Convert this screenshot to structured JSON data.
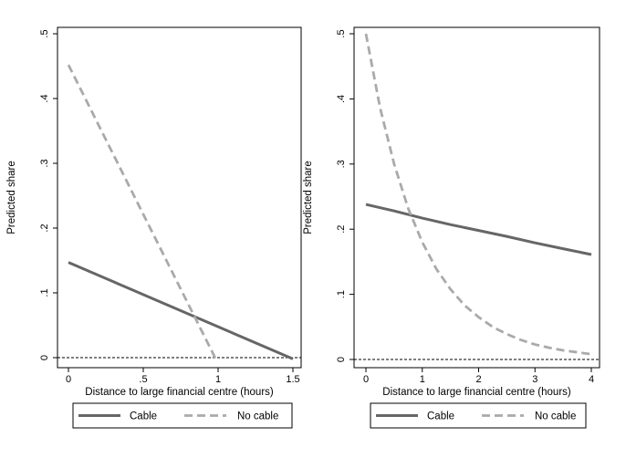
{
  "chart_data": [
    {
      "type": "line",
      "xlabel": "Distance to large financial centre (hours)",
      "ylabel": "Predicted share",
      "xlim": [
        0,
        1.5
      ],
      "ylim": [
        0,
        0.5
      ],
      "xticks": [
        0,
        0.5,
        1,
        1.5
      ],
      "xtick_labels": [
        "0",
        ".5",
        "1",
        "1.5"
      ],
      "yticks": [
        0,
        0.1,
        0.2,
        0.3,
        0.4,
        0.5
      ],
      "ytick_labels": [
        "0",
        ".1",
        ".2",
        ".3",
        ".4",
        ".5"
      ],
      "reference_line": {
        "y": 0,
        "style": "dashed"
      },
      "legend": {
        "position": "bottom",
        "entries": [
          "Cable",
          "No cable"
        ]
      },
      "series": [
        {
          "name": "Cable",
          "style": "solid",
          "color": "#666666",
          "x": [
            0,
            1.5
          ],
          "y": [
            0.147,
            -0.002
          ]
        },
        {
          "name": "No cable",
          "style": "dashed",
          "color": "#aaaaaa",
          "x": [
            0,
            0.98
          ],
          "y": [
            0.452,
            0.0
          ]
        }
      ]
    },
    {
      "type": "line",
      "xlabel": "Distance to large financial centre (hours)",
      "ylabel": "Predicted share",
      "xlim": [
        0,
        4
      ],
      "ylim": [
        0,
        0.5
      ],
      "xticks": [
        0,
        1,
        2,
        3,
        4
      ],
      "xtick_labels": [
        "0",
        "1",
        "2",
        "3",
        "4"
      ],
      "yticks": [
        0,
        0.1,
        0.2,
        0.3,
        0.4,
        0.5
      ],
      "ytick_labels": [
        "0",
        ".1",
        ".2",
        ".3",
        ".4",
        ".5"
      ],
      "reference_line": {
        "y": 0,
        "style": "dashed"
      },
      "legend": {
        "position": "bottom",
        "entries": [
          "Cable",
          "No cable"
        ]
      },
      "series": [
        {
          "name": "Cable",
          "style": "solid",
          "color": "#666666",
          "x": [
            0,
            0.5,
            1,
            1.5,
            2,
            2.5,
            3,
            3.5,
            4
          ],
          "y": [
            0.238,
            0.228,
            0.217,
            0.207,
            0.198,
            0.189,
            0.179,
            0.17,
            0.161
          ]
        },
        {
          "name": "No cable",
          "style": "dashed",
          "color": "#aaaaaa",
          "x": [
            0,
            0.25,
            0.5,
            0.75,
            1,
            1.25,
            1.5,
            1.75,
            2,
            2.25,
            2.5,
            2.75,
            3,
            3.25,
            3.5,
            3.75,
            4
          ],
          "y": [
            0.5,
            0.387,
            0.3,
            0.232,
            0.18,
            0.139,
            0.108,
            0.083,
            0.065,
            0.05,
            0.039,
            0.03,
            0.023,
            0.018,
            0.014,
            0.011,
            0.008
          ]
        }
      ]
    }
  ]
}
